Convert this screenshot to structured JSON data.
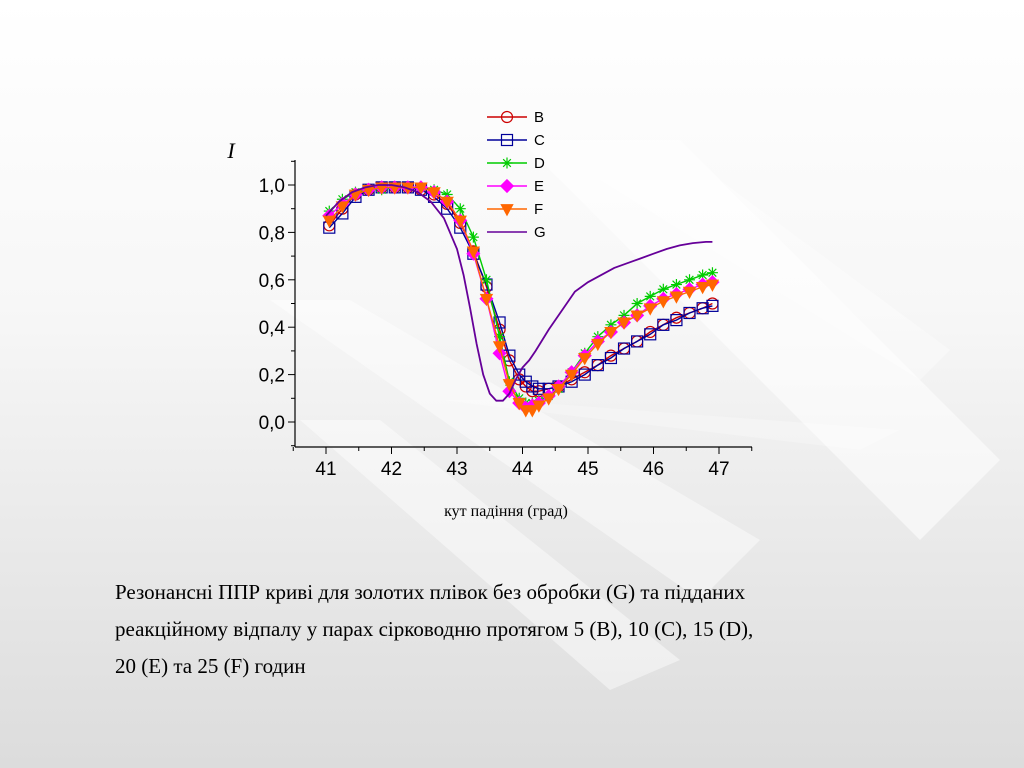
{
  "caption": {
    "line1": "Резонансні ППР криві для золотих плівок без обробки (G)  та  підданих",
    "line2": "реакційному відпалу у парах сірководню протягом  5 (В), 10 (С), 15 (D),",
    "line3": "20 (Е) та  25 (F) годин"
  },
  "chart_data": {
    "type": "line",
    "title": "",
    "xlabel": "кут падіння (град)",
    "ylabel": "I",
    "xlim": [
      40.55,
      47.45
    ],
    "ylim": [
      -0.1,
      1.1
    ],
    "xticks": [
      41,
      42,
      43,
      44,
      45,
      46,
      47
    ],
    "xtick_labels": [
      "41",
      "42",
      "43",
      "44",
      "45",
      "46",
      "47"
    ],
    "yticks": [
      0.0,
      0.2,
      0.4,
      0.6,
      0.8,
      1.0
    ],
    "ytick_labels": [
      "0,0",
      "0,2",
      "0,4",
      "0,6",
      "0,8",
      "1,0"
    ],
    "legend_position": "top-center",
    "series": [
      {
        "name": "B",
        "color": "#cc0000",
        "marker": "circle-open",
        "x": [
          41.05,
          41.25,
          41.45,
          41.65,
          41.85,
          42.05,
          42.25,
          42.45,
          42.65,
          42.85,
          43.05,
          43.25,
          43.45,
          43.65,
          43.8,
          43.95,
          44.05,
          44.15,
          44.25,
          44.4,
          44.55,
          44.75,
          44.95,
          45.15,
          45.35,
          45.55,
          45.75,
          45.95,
          46.15,
          46.35,
          46.55,
          46.75,
          46.9
        ],
        "y": [
          0.83,
          0.9,
          0.96,
          0.98,
          0.99,
          0.99,
          0.99,
          0.98,
          0.96,
          0.92,
          0.84,
          0.72,
          0.57,
          0.39,
          0.26,
          0.18,
          0.15,
          0.13,
          0.13,
          0.14,
          0.15,
          0.18,
          0.21,
          0.24,
          0.28,
          0.31,
          0.34,
          0.38,
          0.41,
          0.44,
          0.46,
          0.48,
          0.5
        ]
      },
      {
        "name": "C",
        "color": "#000099",
        "marker": "square-open",
        "x": [
          41.05,
          41.25,
          41.45,
          41.65,
          41.85,
          42.05,
          42.25,
          42.45,
          42.65,
          42.85,
          43.05,
          43.25,
          43.45,
          43.65,
          43.8,
          43.95,
          44.05,
          44.15,
          44.25,
          44.4,
          44.55,
          44.75,
          44.95,
          45.15,
          45.35,
          45.55,
          45.75,
          45.95,
          46.15,
          46.35,
          46.55,
          46.75,
          46.9
        ],
        "y": [
          0.82,
          0.88,
          0.95,
          0.98,
          0.99,
          0.99,
          0.99,
          0.98,
          0.95,
          0.9,
          0.82,
          0.71,
          0.58,
          0.42,
          0.28,
          0.2,
          0.17,
          0.15,
          0.14,
          0.14,
          0.15,
          0.17,
          0.2,
          0.24,
          0.27,
          0.31,
          0.34,
          0.37,
          0.41,
          0.43,
          0.46,
          0.48,
          0.49
        ]
      },
      {
        "name": "D",
        "color": "#00cc00",
        "marker": "asterisk",
        "x": [
          41.05,
          41.25,
          41.45,
          41.65,
          41.85,
          42.05,
          42.25,
          42.45,
          42.65,
          42.85,
          43.05,
          43.25,
          43.45,
          43.65,
          43.8,
          43.95,
          44.05,
          44.15,
          44.25,
          44.4,
          44.55,
          44.75,
          44.95,
          45.15,
          45.35,
          45.55,
          45.75,
          45.95,
          46.15,
          46.35,
          46.55,
          46.75,
          46.9
        ],
        "y": [
          0.89,
          0.94,
          0.97,
          0.98,
          0.98,
          0.99,
          0.99,
          0.99,
          0.98,
          0.96,
          0.9,
          0.78,
          0.6,
          0.36,
          0.17,
          0.1,
          0.08,
          0.08,
          0.09,
          0.11,
          0.14,
          0.21,
          0.29,
          0.36,
          0.41,
          0.45,
          0.5,
          0.53,
          0.56,
          0.58,
          0.6,
          0.62,
          0.63
        ]
      },
      {
        "name": "E",
        "color": "#ff00ff",
        "marker": "diamond-filled",
        "x": [
          41.05,
          41.25,
          41.45,
          41.65,
          41.85,
          42.05,
          42.25,
          42.45,
          42.65,
          42.85,
          43.05,
          43.25,
          43.45,
          43.65,
          43.8,
          43.95,
          44.05,
          44.15,
          44.25,
          44.4,
          44.55,
          44.75,
          44.95,
          45.15,
          45.35,
          45.55,
          45.75,
          45.95,
          46.15,
          46.35,
          46.55,
          46.75,
          46.9
        ],
        "y": [
          0.87,
          0.92,
          0.96,
          0.98,
          0.99,
          0.99,
          0.99,
          0.99,
          0.97,
          0.93,
          0.85,
          0.71,
          0.52,
          0.29,
          0.13,
          0.08,
          0.06,
          0.07,
          0.08,
          0.11,
          0.15,
          0.21,
          0.28,
          0.34,
          0.38,
          0.42,
          0.45,
          0.49,
          0.52,
          0.54,
          0.56,
          0.58,
          0.59
        ]
      },
      {
        "name": "F",
        "color": "#ff6600",
        "marker": "triangle-down-filled",
        "x": [
          41.05,
          41.25,
          41.45,
          41.65,
          41.85,
          42.05,
          42.25,
          42.45,
          42.65,
          42.85,
          43.05,
          43.25,
          43.45,
          43.65,
          43.8,
          43.95,
          44.05,
          44.15,
          44.25,
          44.4,
          44.55,
          44.75,
          44.95,
          45.15,
          45.35,
          45.55,
          45.75,
          45.95,
          46.15,
          46.35,
          46.55,
          46.75,
          46.9
        ],
        "y": [
          0.85,
          0.91,
          0.96,
          0.98,
          0.99,
          0.99,
          0.99,
          0.99,
          0.97,
          0.93,
          0.85,
          0.72,
          0.52,
          0.32,
          0.16,
          0.08,
          0.05,
          0.05,
          0.07,
          0.1,
          0.14,
          0.2,
          0.27,
          0.33,
          0.38,
          0.42,
          0.45,
          0.48,
          0.51,
          0.53,
          0.55,
          0.57,
          0.58
        ]
      },
      {
        "name": "G",
        "color": "#660099",
        "marker": "none",
        "x": [
          41.0,
          41.2,
          41.4,
          41.6,
          41.8,
          42.0,
          42.2,
          42.4,
          42.6,
          42.8,
          43.0,
          43.1,
          43.2,
          43.3,
          43.4,
          43.5,
          43.6,
          43.7,
          43.8,
          43.9,
          44.0,
          44.1,
          44.2,
          44.4,
          44.6,
          44.8,
          45.0,
          45.2,
          45.4,
          45.6,
          45.8,
          46.0,
          46.2,
          46.4,
          46.6,
          46.8,
          46.9
        ],
        "y": [
          0.87,
          0.93,
          0.97,
          0.99,
          1.0,
          1.0,
          0.99,
          0.97,
          0.93,
          0.86,
          0.73,
          0.62,
          0.48,
          0.33,
          0.2,
          0.12,
          0.09,
          0.09,
          0.12,
          0.18,
          0.23,
          0.26,
          0.3,
          0.39,
          0.47,
          0.55,
          0.59,
          0.62,
          0.65,
          0.67,
          0.69,
          0.71,
          0.73,
          0.745,
          0.755,
          0.76,
          0.76
        ]
      }
    ]
  }
}
